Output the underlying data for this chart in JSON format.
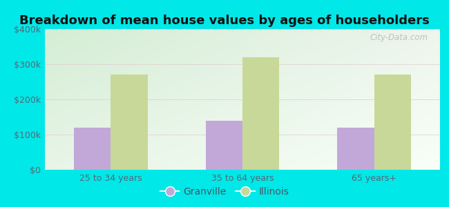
{
  "title": "Breakdown of mean house values by ages of householders",
  "categories": [
    "25 to 34 years",
    "35 to 64 years",
    "65 years+"
  ],
  "granville_values": [
    120000,
    140000,
    120000
  ],
  "illinois_values": [
    270000,
    320000,
    270000
  ],
  "granville_color": "#c2a8d8",
  "illinois_color": "#c8d898",
  "background_color": "#00e8e8",
  "plot_bg_top_left": "#d4edd4",
  "plot_bg_top_right": "#edf5ed",
  "plot_bg_bottom": "#f8fff8",
  "ylim": [
    0,
    400000
  ],
  "ytick_values": [
    0,
    100000,
    200000,
    300000,
    400000
  ],
  "ytick_labels": [
    "$0",
    "$100k",
    "$200k",
    "$300k",
    "$400k"
  ],
  "legend_labels": [
    "Granville",
    "Illinois"
  ],
  "bar_width": 0.28,
  "title_fontsize": 13,
  "tick_fontsize": 9,
  "legend_fontsize": 10,
  "watermark": "City-Data.com",
  "grid_color": "#e8e8d8",
  "title_color": "#111111"
}
